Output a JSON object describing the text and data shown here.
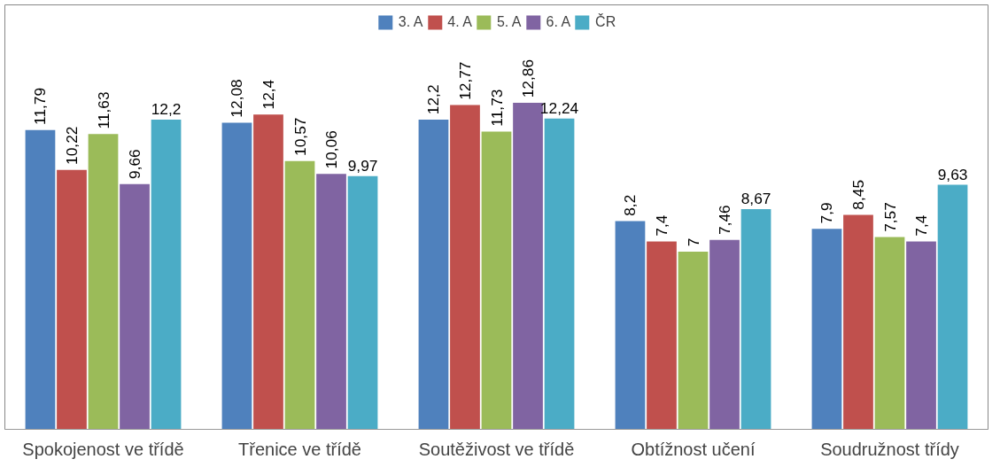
{
  "chart_data": {
    "type": "bar",
    "categories": [
      "Spokojenost ve třídě",
      "Třenice ve třídě",
      "Soutěživost ve třídě",
      "Obtížnost učení",
      "Soudružnost třídy"
    ],
    "series": [
      {
        "name": "3. A",
        "color": "#4f81bd",
        "values": [
          11.79,
          12.08,
          12.2,
          8.2,
          7.9
        ],
        "value_labels": [
          "11,79",
          "12,08",
          "12,2",
          "8,2",
          "7,9"
        ]
      },
      {
        "name": "4. A",
        "color": "#c0504d",
        "values": [
          10.22,
          12.4,
          12.77,
          7.4,
          8.45
        ],
        "value_labels": [
          "10,22",
          "12,4",
          "12,77",
          "7,4",
          "8,45"
        ]
      },
      {
        "name": "5. A",
        "color": "#9bbb59",
        "values": [
          11.63,
          10.57,
          11.73,
          7,
          7.57
        ],
        "value_labels": [
          "11,63",
          "10,57",
          "11,73",
          "7",
          "7,57"
        ]
      },
      {
        "name": "6. A",
        "color": "#8064a2",
        "values": [
          9.66,
          10.06,
          12.86,
          7.46,
          7.4
        ],
        "value_labels": [
          "9,66",
          "10,06",
          "12,86",
          "7,46",
          "7,4"
        ]
      },
      {
        "name": "ČR",
        "color": "#4bacc6",
        "values": [
          12.2,
          9.97,
          12.24,
          8.67,
          9.63
        ],
        "value_labels": [
          "12,2",
          "9,97",
          "12,24",
          "8,67",
          "9,63"
        ]
      }
    ],
    "legend": "top",
    "grid": false
  }
}
